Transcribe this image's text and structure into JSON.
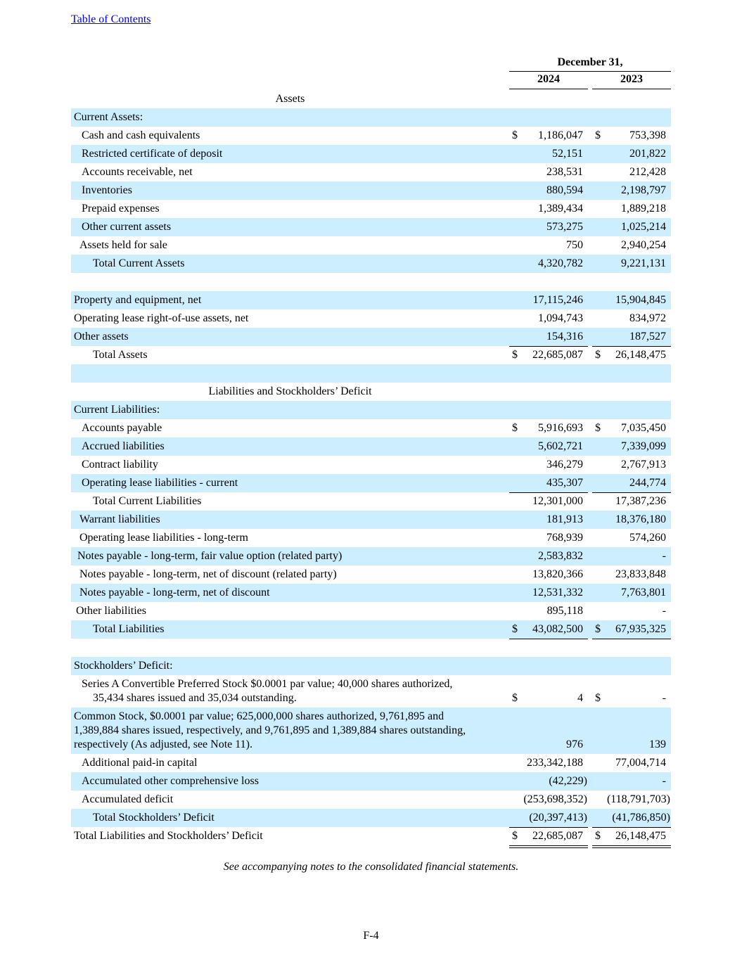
{
  "nav": {
    "toc_link": "Table of Contents"
  },
  "header": {
    "date": "December 31,",
    "year1": "2024",
    "year2": "2023"
  },
  "rows": [
    {
      "label": "Assets",
      "shade": false,
      "align": "center"
    },
    {
      "label": "Current Assets:",
      "shade": true,
      "indent": 0
    },
    {
      "label": "Cash and cash equivalents",
      "shade": false,
      "indent": 11,
      "v1": "1,186,047",
      "v2": "753,398",
      "cur1": "$",
      "cur2": "$"
    },
    {
      "label": "Restricted certificate of deposit",
      "shade": true,
      "indent": 11,
      "v1": "52,151",
      "v2": "201,822"
    },
    {
      "label": "Accounts receivable, net",
      "shade": false,
      "indent": 11,
      "v1": "238,531",
      "v2": "212,428"
    },
    {
      "label": "Inventories",
      "shade": true,
      "indent": 11,
      "v1": "880,594",
      "v2": "2,198,797"
    },
    {
      "label": "Prepaid expenses",
      "shade": false,
      "indent": 11,
      "v1": "1,389,434",
      "v2": "1,889,218"
    },
    {
      "label": "Other current assets",
      "shade": true,
      "indent": 11,
      "v1": "573,275",
      "v2": "1,025,214"
    },
    {
      "label": "Assets held for sale",
      "shade": false,
      "indent": 8,
      "v1": "750",
      "v2": "2,940,254",
      "rule": "single"
    },
    {
      "label": "Total Current Assets",
      "shade": true,
      "indent": 27,
      "v1": "4,320,782",
      "v2": "9,221,131"
    },
    {
      "label": "",
      "shade": false
    },
    {
      "label": "Property and equipment, net",
      "shade": true,
      "indent": 0,
      "v1": "17,115,246",
      "v2": "15,904,845"
    },
    {
      "label": "Operating lease right-of-use assets, net",
      "shade": false,
      "indent": 0,
      "v1": "1,094,743",
      "v2": "834,972"
    },
    {
      "label": "Other assets",
      "shade": true,
      "indent": 0,
      "v1": "154,316",
      "v2": "187,527",
      "rule": "single"
    },
    {
      "label": "Total Assets",
      "shade": false,
      "indent": 27,
      "v1": "22,685,087",
      "v2": "26,148,475",
      "cur1": "$",
      "cur2": "$",
      "rule": "double"
    },
    {
      "label": "",
      "shade": true
    },
    {
      "label": "Liabilities and Stockholders’  Deficit",
      "shade": false,
      "align": "center"
    },
    {
      "label": "Current Liabilities:",
      "shade": true,
      "indent": 0
    },
    {
      "label": "Accounts payable",
      "shade": false,
      "indent": 11,
      "v1": "5,916,693",
      "v2": "7,035,450",
      "cur1": "$",
      "cur2": "$"
    },
    {
      "label": "Accrued liabilities",
      "shade": true,
      "indent": 11,
      "v1": "5,602,721",
      "v2": "7,339,099"
    },
    {
      "label": "Contract liability",
      "shade": false,
      "indent": 11,
      "v1": "346,279",
      "v2": "2,767,913"
    },
    {
      "label": "Operating lease liabilities - current",
      "shade": true,
      "indent": 11,
      "v1": "435,307",
      "v2": "244,774",
      "rule": "single"
    },
    {
      "label": "Total Current Liabilities",
      "shade": false,
      "indent": 27,
      "v1": "12,301,000",
      "v2": "17,387,236"
    },
    {
      "label": "Warrant liabilities",
      "shade": true,
      "indent": 8,
      "v1": "181,913",
      "v2": "18,376,180"
    },
    {
      "label": "Operating lease liabilities - long-term",
      "shade": false,
      "indent": 8,
      "v1": "768,939",
      "v2": "574,260"
    },
    {
      "label": "Notes payable - long-term, fair value option (related party)",
      "shade": true,
      "indent": 5,
      "v1": "2,583,832",
      "v2": "-"
    },
    {
      "label": "Notes payable - long-term, net of discount (related party)",
      "shade": false,
      "indent": 8,
      "v1": "13,820,366",
      "v2": "23,833,848"
    },
    {
      "label": "Notes payable - long-term, net of discount",
      "shade": true,
      "indent": 8,
      "v1": "12,531,332",
      "v2": "7,763,801"
    },
    {
      "label": "Other liabilities",
      "shade": false,
      "indent": 3,
      "v1": "895,118",
      "v2": "-",
      "rule": "single"
    },
    {
      "label": "Total Liabilities",
      "shade": true,
      "indent": 27,
      "v1": "43,082,500",
      "v2": "67,935,325",
      "cur1": "$",
      "cur2": "$",
      "rule": "single"
    },
    {
      "label": "",
      "shade": false
    },
    {
      "label": "Stockholders’ Deficit:",
      "shade": true,
      "indent": 0
    },
    {
      "label": "Series A Convertible Preferred Stock $0.0001 par value; 40,000 shares authorized,",
      "label2": "35,434 shares issued and 35,034 outstanding.",
      "shade": false,
      "indent": 11,
      "indent2": 27,
      "lines": 2,
      "v1": "4",
      "v2": "-",
      "cur1": "$",
      "cur2": "$"
    },
    {
      "label": "Common Stock, $0.0001 par value; 625,000,000 shares authorized, 9,761,895 and",
      "label2": "1,389,884 shares issued, respectively, and 9,761,895 and 1,389,884  shares outstanding,",
      "label3": "respectively (As adjusted, see Note 11).",
      "shade": true,
      "indent": 0,
      "lines": 3,
      "v1": "976",
      "v2": "139"
    },
    {
      "label": "Additional paid-in capital",
      "shade": false,
      "indent": 11,
      "v1": "233,342,188",
      "v2": "77,004,714"
    },
    {
      "label": "Accumulated other comprehensive loss",
      "shade": true,
      "indent": 11,
      "v1": "(42,229)",
      "v2": "-"
    },
    {
      "label": "Accumulated deficit",
      "shade": false,
      "indent": 11,
      "v1": "(253,698,352)",
      "v2": "(118,791,703)",
      "rule": "single"
    },
    {
      "label": "Total Stockholders’ Deficit",
      "shade": true,
      "indent": 27,
      "v1": "(20,397,413)",
      "v2": "(41,786,850)",
      "rule": "single"
    },
    {
      "label": "Total Liabilities and Stockholders’ Deficit",
      "shade": false,
      "indent": 0,
      "v1": "22,685,087",
      "v2": "26,148,475",
      "cur1": "$",
      "cur2": "$",
      "rule": "double"
    }
  ],
  "footnote": "See accompanying notes to the consolidated financial statements.",
  "page_number": "F-4"
}
